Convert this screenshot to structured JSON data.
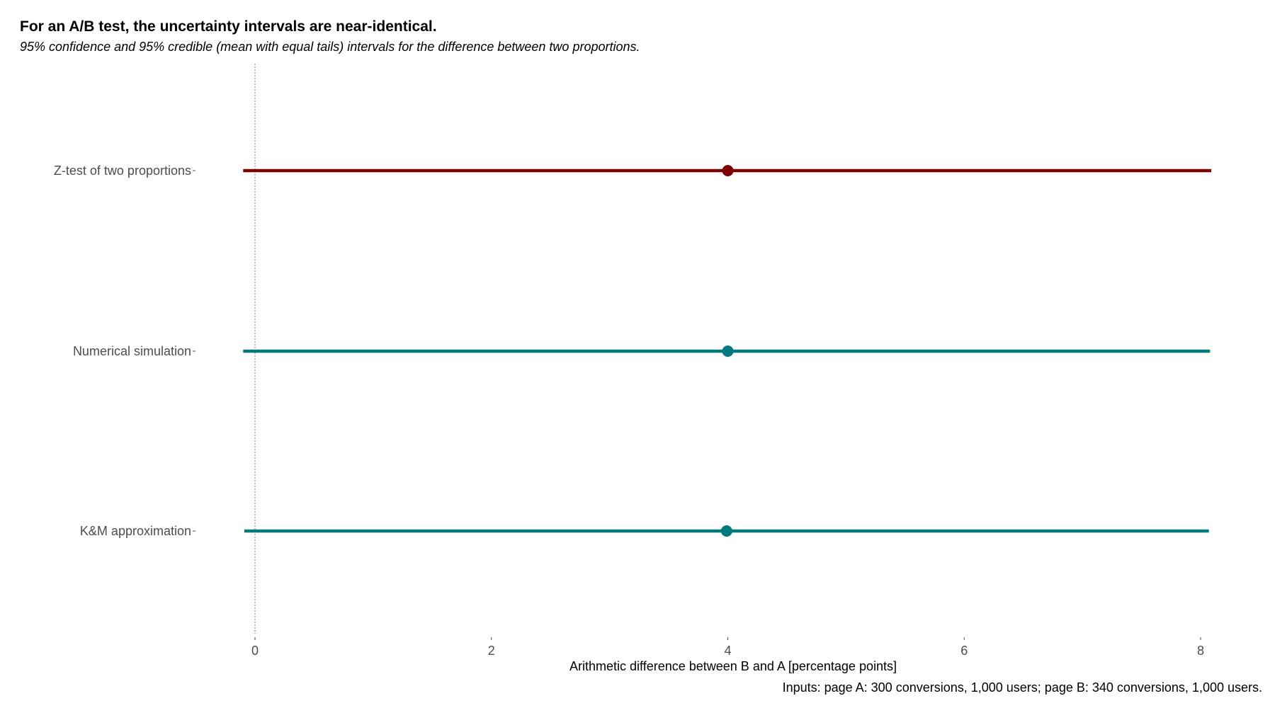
{
  "chart_data": {
    "type": "scatter",
    "title": "For an A/B test, the uncertainty intervals are near-identical.",
    "subtitle": "95% confidence and 95% credible (mean with equal tails) intervals for the difference between two proportions.",
    "xlabel": "Arithmetic difference between B and A [percentage points]",
    "ylabel": "",
    "caption": "Inputs: page A: 300 conversions, 1,000 users; page B: 340 conversions, 1,000 users.",
    "xlim": [
      -0.1,
      8.1
    ],
    "x_ticks": [
      0,
      2,
      4,
      6,
      8
    ],
    "x_tick_labels": [
      "0",
      "2",
      "4",
      "6",
      "8"
    ],
    "reference_line": {
      "x": 0,
      "style": "dotted"
    },
    "grid": false,
    "legend": "none",
    "categories": [
      "Z-test of two proportions",
      "Numerical simulation",
      "K&M approximation"
    ],
    "points": [
      {
        "category": "Z-test of two proportions",
        "estimate": 4.0,
        "lower": -0.1,
        "upper": 8.09,
        "color": "#7f0000"
      },
      {
        "category": "Numerical simulation",
        "estimate": 4.0,
        "lower": -0.1,
        "upper": 8.08,
        "color": "#007a7a"
      },
      {
        "category": "K&M approximation",
        "estimate": 3.99,
        "lower": -0.09,
        "upper": 8.07,
        "color": "#007a7a"
      }
    ]
  }
}
